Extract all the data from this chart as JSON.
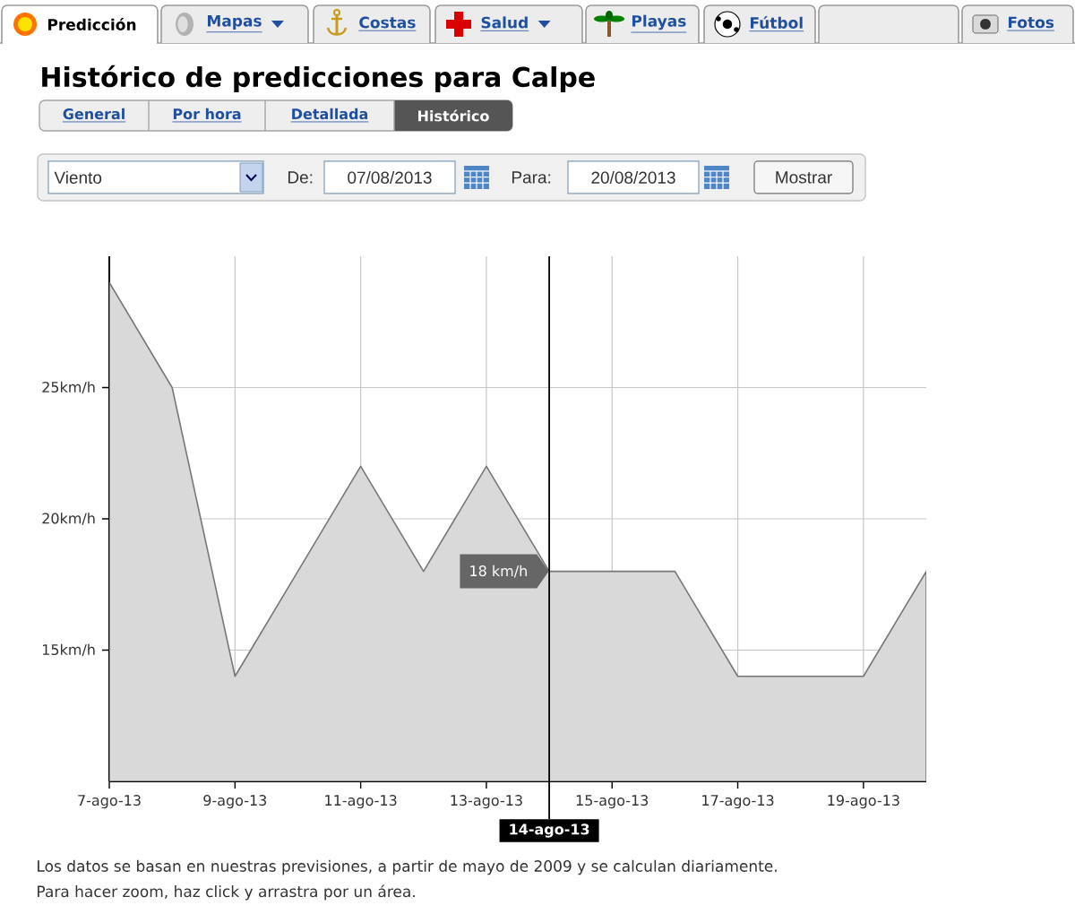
{
  "chart_data": [
    {
      "type": "other",
      "categories": [
        "Predicción",
        "Mapas",
        "Costas",
        "Salud",
        "Playas",
        "Fútbol",
        null,
        "Fotos"
      ],
      "annotations": [
        "General",
        "Por hora",
        "Detallada",
        "Histórico",
        "Viento",
        "De:",
        "07/08/2013",
        "Para:",
        "20/08/2013",
        "Mostrar"
      ]
    },
    {
      "type": "area",
      "title": "Histórico de predicciones para Calpe",
      "x": [
        "2013-08-07",
        "2013-08-08",
        "2013-08-09",
        "2013-08-10",
        "2013-08-11",
        "2013-08-12",
        "2013-08-13",
        "2013-08-14",
        "2013-08-15",
        "2013-08-16",
        "2013-08-17",
        "2013-08-18",
        "2013-08-19",
        "2013-08-20"
      ],
      "values": [
        29,
        25,
        14,
        18,
        22,
        18,
        22,
        18,
        18,
        18,
        14,
        14,
        14,
        18
      ],
      "color": "#d9d9d9",
      "xlim": [
        "2013-08-07",
        "2013-08-20"
      ],
      "ylim": [
        10,
        30
      ],
      "xticks": [
        {
          "value": "2013-08-07",
          "label": "7-ago-13"
        },
        {
          "value": "2013-08-09",
          "label": "9-ago-13"
        },
        {
          "value": "2013-08-11",
          "label": "11-ago-13"
        },
        {
          "value": "2013-08-13",
          "label": "13-ago-13"
        },
        {
          "value": "2013-08-15",
          "label": "15-ago-13"
        },
        {
          "value": "2013-08-17",
          "label": "17-ago-13"
        },
        {
          "value": "2013-08-19",
          "label": "19-ago-13"
        }
      ],
      "yticks": [
        {
          "value": 15,
          "label": "15km/h"
        },
        {
          "value": 20,
          "label": "20km/h"
        },
        {
          "value": 25,
          "label": "25km/h"
        }
      ],
      "grid": true,
      "ref_lines": [
        {
          "axis": "x",
          "value": "2013-08-14",
          "label": "14-ago-13",
          "color": "#000000"
        }
      ],
      "annotations": [
        {
          "text": "18 km/h",
          "x": "2013-08-14",
          "y": 18
        },
        "Los datos se basan en nuestras previsiones, a partir de mayo de 2009 y se calculan diariamente.",
        "Para hacer zoom, haz click y arrastra por un área."
      ]
    }
  ]
}
